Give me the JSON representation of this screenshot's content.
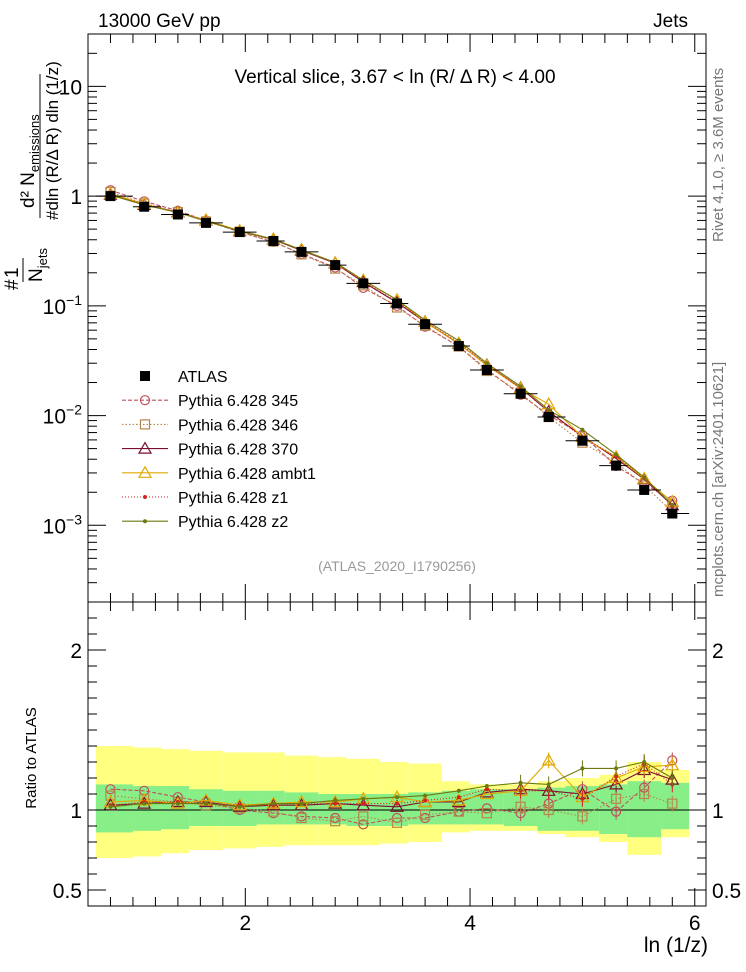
{
  "header": {
    "left": "13000 GeV pp",
    "right": "Jets"
  },
  "side_labels": {
    "rivet": "Rivet 4.1.0, ≥ 3.6M events",
    "mcplots": "mcplots.cern.ch [arXiv:2401.10621]"
  },
  "chart_data": {
    "type": "line",
    "title": "Vertical slice, 3.67 < ln (R/  Δ R) < 4.00",
    "watermark": "(ATLAS_2020_I1790256)",
    "xlabel": "ln (1/z)",
    "ylabel": {
      "num_top": "d² N",
      "num_sub": "emissions",
      "prefix": "#",
      "frac1": "1",
      "njets": "N",
      "njets_sub": "jets",
      "hash2": "#",
      "den": "dln (R/Δ R) dln (1/z)"
    },
    "ratio_ylabel": "Ratio to ATLAS",
    "xlim": [
      0.6,
      6.1
    ],
    "ylim": [
      0.0002,
      30
    ],
    "ratio_ylim": [
      0.4,
      2.3
    ],
    "x_ticks": [
      "2",
      "4",
      "6"
    ],
    "x_tick_values": [
      2,
      4,
      6
    ],
    "y_ticks": [
      {
        "value": 10,
        "base": "10",
        "exp": ""
      },
      {
        "value": 1,
        "base": "1",
        "exp": ""
      },
      {
        "value": 0.1,
        "base": "10",
        "exp": "−1"
      },
      {
        "value": 0.01,
        "base": "10",
        "exp": "−2"
      },
      {
        "value": 0.001,
        "base": "10",
        "exp": "−3"
      }
    ],
    "ratio_ticks": [
      {
        "value": 2,
        "label": "2"
      },
      {
        "value": 1,
        "label": "1"
      },
      {
        "value": 0.5,
        "label": "0.5"
      }
    ],
    "edges": [
      0.67,
      1.0,
      1.25,
      1.5,
      1.8,
      2.1,
      2.35,
      2.65,
      2.9,
      3.2,
      3.45,
      3.75,
      4.0,
      4.3,
      4.6,
      4.85,
      5.15,
      5.4,
      5.7,
      5.95
    ],
    "x": [
      0.8,
      1.1,
      1.4,
      1.65,
      1.95,
      2.25,
      2.5,
      2.8,
      3.05,
      3.35,
      3.6,
      3.9,
      4.15,
      4.45,
      4.7,
      5.0,
      5.3,
      5.55,
      5.8
    ],
    "atlas": [
      1.0,
      0.8,
      0.68,
      0.57,
      0.47,
      0.39,
      0.31,
      0.235,
      0.16,
      0.105,
      0.068,
      0.043,
      0.026,
      0.0158,
      0.0097,
      0.0059,
      0.0035,
      0.0021,
      0.00128
    ],
    "stat_band": {
      "lo": [
        0.86,
        0.87,
        0.88,
        0.9,
        0.9,
        0.91,
        0.91,
        0.91,
        0.9,
        0.9,
        0.91,
        0.91,
        0.91,
        0.9,
        0.87,
        0.87,
        0.85,
        0.83,
        0.88
      ],
      "hi": [
        1.16,
        1.15,
        1.15,
        1.13,
        1.12,
        1.12,
        1.11,
        1.1,
        1.1,
        1.1,
        1.11,
        1.12,
        1.13,
        1.13,
        1.14,
        1.15,
        1.16,
        1.18,
        1.17
      ]
    },
    "syst_band": {
      "lo": [
        0.7,
        0.71,
        0.73,
        0.75,
        0.76,
        0.77,
        0.78,
        0.78,
        0.78,
        0.79,
        0.8,
        0.86,
        0.87,
        0.87,
        0.85,
        0.83,
        0.8,
        0.72,
        0.83
      ],
      "hi": [
        1.4,
        1.39,
        1.38,
        1.37,
        1.36,
        1.36,
        1.34,
        1.33,
        1.32,
        1.3,
        1.29,
        1.18,
        1.16,
        1.16,
        1.18,
        1.2,
        1.22,
        1.3,
        1.25
      ]
    },
    "atlas_label": "ATLAS",
    "series": [
      {
        "name": "Pythia 6.428 345",
        "color": "#c0505a",
        "marker": "circle",
        "dash": "4,2",
        "ratio": [
          1.13,
          1.12,
          1.08,
          1.05,
          1.0,
          0.98,
          0.96,
          0.95,
          0.91,
          0.95,
          0.95,
          0.99,
          1.01,
          0.98,
          1.04,
          1.13,
          0.99,
          1.14,
          1.31
        ]
      },
      {
        "name": "Pythia 6.428 346",
        "color": "#b8864a",
        "marker": "square",
        "dash": "1.5,2",
        "ratio": [
          1.09,
          1.07,
          1.05,
          1.03,
          1.01,
          0.99,
          0.95,
          0.93,
          0.96,
          0.92,
          0.97,
          0.99,
          0.98,
          1.02,
          1.0,
          0.96,
          1.07,
          1.1,
          1.04
        ]
      },
      {
        "name": "Pythia 6.428 370",
        "color": "#7a1030",
        "marker": "triangle",
        "dash": "",
        "ratio": [
          1.03,
          1.04,
          1.05,
          1.05,
          1.02,
          1.03,
          1.03,
          1.04,
          1.03,
          1.02,
          1.05,
          1.05,
          1.11,
          1.13,
          1.12,
          1.1,
          1.16,
          1.25,
          1.19
        ]
      },
      {
        "name": "Pythia 6.428 ambt1",
        "color": "#e0a800",
        "marker": "triangle",
        "dash": "",
        "ratio": [
          1.05,
          1.06,
          1.04,
          1.06,
          1.03,
          1.04,
          1.05,
          1.05,
          1.07,
          1.08,
          1.05,
          1.06,
          1.1,
          1.12,
          1.31,
          1.08,
          1.2,
          1.27,
          1.28
        ]
      },
      {
        "name": "Pythia 6.428 z1",
        "color": "#d82020",
        "marker": "dot",
        "dash": "1,2",
        "ratio": [
          1.03,
          1.05,
          1.05,
          1.04,
          1.03,
          1.03,
          1.04,
          1.04,
          1.04,
          1.04,
          1.06,
          1.08,
          1.13,
          1.12,
          1.12,
          1.07,
          1.21,
          1.29,
          1.16
        ]
      },
      {
        "name": "Pythia 6.428 z2",
        "color": "#6e7a10",
        "marker": "dot",
        "dash": "",
        "ratio": [
          1.02,
          1.04,
          1.04,
          1.04,
          1.02,
          1.04,
          1.04,
          1.06,
          1.07,
          1.08,
          1.09,
          1.12,
          1.15,
          1.17,
          1.16,
          1.26,
          1.26,
          1.3,
          1.2
        ]
      }
    ]
  }
}
